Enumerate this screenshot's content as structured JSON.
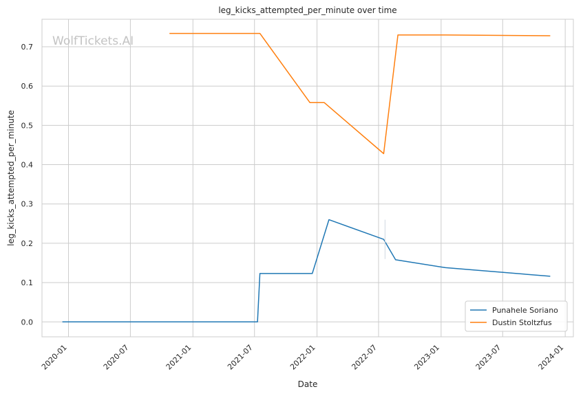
{
  "chart_data": {
    "type": "line",
    "title": "leg_kicks_attempted_per_minute over time",
    "xlabel": "Date",
    "ylabel": "leg_kicks_attempted_per_minute",
    "watermark": "WolfTickets.AI",
    "xlim": [
      "2019-10-15",
      "2024-01-25"
    ],
    "ylim": [
      -0.038,
      0.77
    ],
    "x_ticks": [
      "2020-01",
      "2020-07",
      "2021-01",
      "2021-07",
      "2022-01",
      "2022-07",
      "2023-01",
      "2023-07",
      "2024-01"
    ],
    "y_ticks": [
      "0.0",
      "0.1",
      "0.2",
      "0.3",
      "0.4",
      "0.5",
      "0.6",
      "0.7"
    ],
    "grid": true,
    "legend_position": "bottom-right",
    "series": [
      {
        "name": "Punahele Soriano",
        "color": "#1f77b4",
        "points": [
          {
            "x": "2019-12-14",
            "y": 0.0
          },
          {
            "x": "2021-07-10",
            "y": 0.0
          },
          {
            "x": "2021-07-17",
            "y": 0.123
          },
          {
            "x": "2021-12-18",
            "y": 0.123
          },
          {
            "x": "2022-02-05",
            "y": 0.26
          },
          {
            "x": "2022-07-16",
            "y": 0.21
          },
          {
            "x": "2022-08-20",
            "y": 0.158
          },
          {
            "x": "2023-01-14",
            "y": 0.138
          },
          {
            "x": "2023-11-18",
            "y": 0.116
          }
        ]
      },
      {
        "name": "Dustin Stoltzfus",
        "color": "#ff7f0e",
        "points": [
          {
            "x": "2020-10-24",
            "y": 0.734
          },
          {
            "x": "2021-07-17",
            "y": 0.734
          },
          {
            "x": "2021-12-11",
            "y": 0.558
          },
          {
            "x": "2022-01-22",
            "y": 0.558
          },
          {
            "x": "2022-07-16",
            "y": 0.428
          },
          {
            "x": "2022-08-27",
            "y": 0.73
          },
          {
            "x": "2023-01-14",
            "y": 0.73
          },
          {
            "x": "2023-11-18",
            "y": 0.728
          }
        ]
      }
    ]
  }
}
